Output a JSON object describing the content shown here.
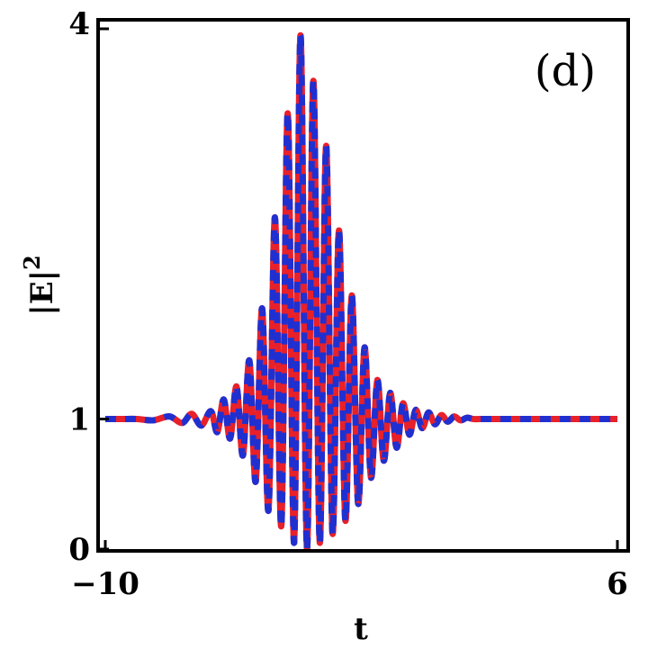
{
  "chart_data": {
    "type": "line",
    "panel_label": "(d)",
    "xlabel": "t",
    "ylabel_base": "|E|",
    "ylabel_sup": "2",
    "xlim": [
      -10,
      6
    ],
    "ylim": [
      0,
      4
    ],
    "x_ticks": [
      {
        "value": -10,
        "label": "−10"
      },
      {
        "value": 6,
        "label": "6"
      }
    ],
    "y_ticks": [
      {
        "value": 0,
        "label": "0"
      },
      {
        "value": 1,
        "label": "1"
      },
      {
        "value": 4,
        "label": "4"
      }
    ],
    "grid": false,
    "legend": "none",
    "series": [
      {
        "color": "#e8202a",
        "style": "solid",
        "x": [
          -10,
          -9.5,
          -9,
          -8.5,
          -8,
          -7.6,
          -7.3,
          -7,
          -6.7,
          -6.5,
          -6.3,
          -6.1,
          -5.9,
          -5.7,
          -5.5,
          -5.3,
          -5.1,
          -4.9,
          -4.7,
          -4.5,
          -4.3,
          -4.1,
          -3.9,
          -3.7,
          -3.5,
          -3.3,
          -3.1,
          -2.9,
          -2.7,
          -2.5,
          -2.3,
          -2.1,
          -1.9,
          -1.7,
          -1.5,
          -1.3,
          -1.1,
          -0.9,
          -0.7,
          -0.5,
          -0.3,
          -0.1,
          0.1,
          0.3,
          0.5,
          0.7,
          0.9,
          1.1,
          1.3,
          1.5,
          1.8,
          2.1,
          2.5,
          3,
          3.5,
          4,
          5,
          6
        ],
        "y": [
          1,
          1,
          1,
          0.99,
          1.02,
          0.97,
          1.04,
          0.95,
          1.06,
          0.9,
          1.15,
          0.85,
          1.25,
          0.72,
          1.45,
          0.52,
          1.85,
          0.3,
          2.55,
          0.18,
          3.35,
          0.05,
          3.95,
          0.0,
          3.6,
          0.05,
          3.1,
          0.12,
          2.45,
          0.22,
          1.95,
          0.35,
          1.55,
          0.55,
          1.3,
          0.68,
          1.2,
          0.78,
          1.12,
          0.88,
          1.07,
          0.93,
          1.05,
          0.96,
          1.03,
          0.98,
          1.02,
          0.99,
          1.01,
          1,
          1,
          1,
          1,
          1,
          1,
          1,
          1,
          1
        ]
      },
      {
        "color": "#2030d0",
        "style": "dashed",
        "x": [
          -10,
          -9.5,
          -9,
          -8.5,
          -8,
          -7.6,
          -7.3,
          -7,
          -6.7,
          -6.5,
          -6.3,
          -6.1,
          -5.9,
          -5.7,
          -5.5,
          -5.3,
          -5.1,
          -4.9,
          -4.7,
          -4.5,
          -4.3,
          -4.1,
          -3.9,
          -3.7,
          -3.5,
          -3.3,
          -3.1,
          -2.9,
          -2.7,
          -2.5,
          -2.3,
          -2.1,
          -1.9,
          -1.7,
          -1.5,
          -1.3,
          -1.1,
          -0.9,
          -0.7,
          -0.5,
          -0.3,
          -0.1,
          0.1,
          0.3,
          0.5,
          0.7,
          0.9,
          1.1,
          1.3,
          1.5,
          1.8,
          2.1,
          2.5,
          3,
          3.5,
          4,
          5,
          6
        ],
        "y": [
          1,
          1,
          1,
          0.99,
          1.02,
          0.97,
          1.04,
          0.95,
          1.06,
          0.9,
          1.15,
          0.85,
          1.25,
          0.72,
          1.45,
          0.52,
          1.85,
          0.3,
          2.55,
          0.18,
          3.35,
          0.05,
          3.95,
          0.0,
          3.6,
          0.05,
          3.1,
          0.12,
          2.45,
          0.22,
          1.95,
          0.35,
          1.55,
          0.55,
          1.3,
          0.68,
          1.2,
          0.78,
          1.12,
          0.88,
          1.07,
          0.93,
          1.05,
          0.96,
          1.03,
          0.98,
          1.02,
          0.99,
          1.01,
          1,
          1,
          1,
          1,
          1,
          1,
          1,
          1,
          1
        ]
      }
    ]
  }
}
